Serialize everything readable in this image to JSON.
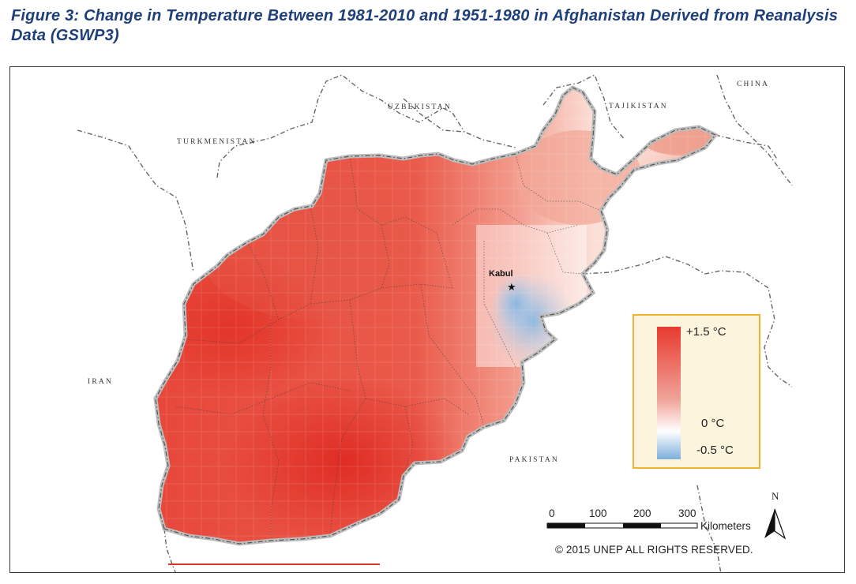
{
  "title": "Figure 3: Change in Temperature Between 1981-2010 and 1951-1980 in Afghanistan Derived from Reanalysis Data (GSWP3)",
  "labels": {
    "uzbekistan": "UZBEKISTAN",
    "tajikistan": "TAJIKISTAN",
    "china": "CHINA",
    "turkmenistan": "TURKMENISTAN",
    "iran": "IRAN",
    "pakistan": "PAKISTAN",
    "kabul": "Kabul"
  },
  "legend": {
    "max_label": "+1.5 °C",
    "zero_label": "0 °C",
    "min_label": "-0.5 °C",
    "colors": {
      "max": "#e83a2e",
      "zero": "#ffffff",
      "min": "#7eaedc"
    }
  },
  "scale_bar": {
    "ticks": [
      "0",
      "100",
      "200",
      "300"
    ],
    "unit": "Kilometers",
    "north": "N"
  },
  "copyright": "© 2015 UNEP ALL RIGHTS RESERVED."
}
